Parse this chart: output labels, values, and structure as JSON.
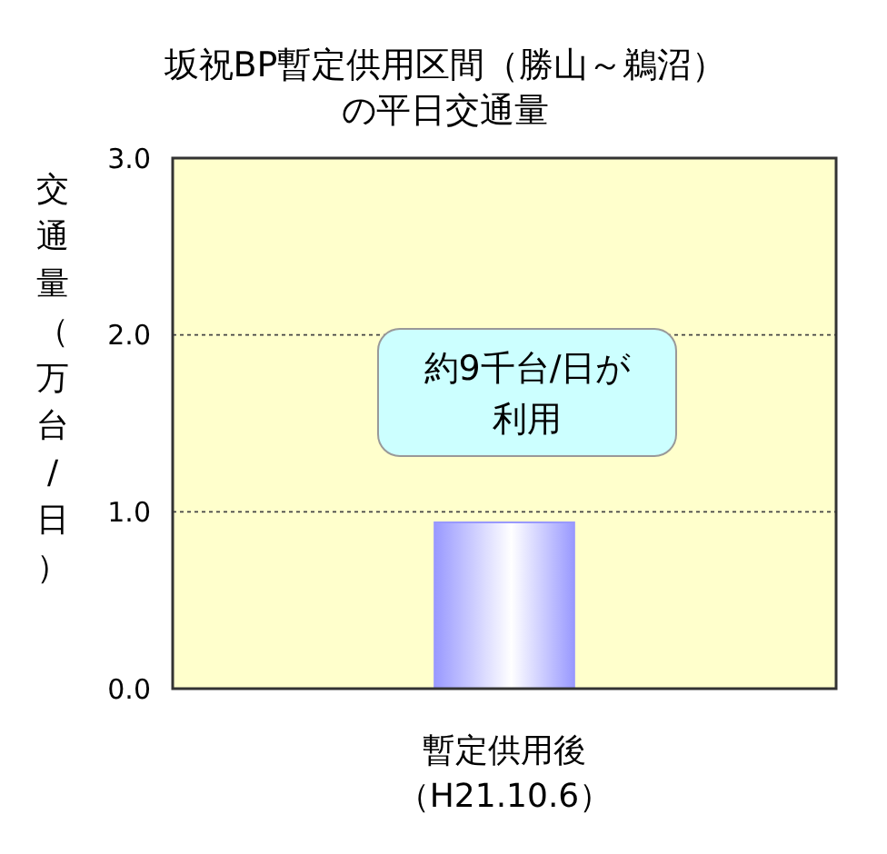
{
  "chart_data": {
    "type": "bar",
    "title": "坂祝BP暫定供用区間（勝山～鵜沼）の平日交通量",
    "ylabel": "交通量（万台/日）",
    "categories": [
      "暫定供用後（H21.10.6）"
    ],
    "values": [
      0.94
    ],
    "color": "#9999ff",
    "ylim": [
      0,
      3
    ],
    "yticks": [
      {
        "value": 0,
        "label": "0.0"
      },
      {
        "value": 1,
        "label": "1.0"
      },
      {
        "value": 2,
        "label": "2.0"
      },
      {
        "value": 3,
        "label": "3.0"
      }
    ],
    "grid": "y",
    "annotations": [
      "約9千台/日が利用"
    ]
  }
}
